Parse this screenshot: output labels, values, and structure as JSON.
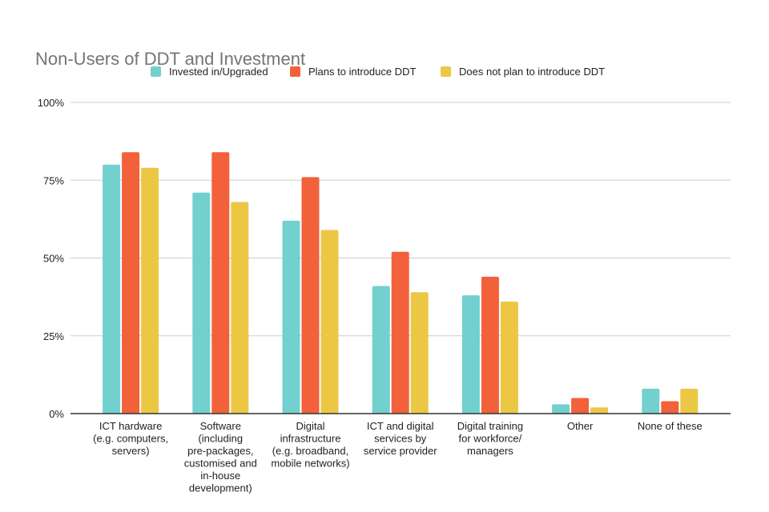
{
  "chart_data": {
    "type": "bar",
    "title": "Non-Users of DDT and Investment",
    "xlabel": "",
    "ylabel": "",
    "ylim": [
      0,
      100
    ],
    "yticks": [
      "0%",
      "25%",
      "50%",
      "75%",
      "100%"
    ],
    "ytick_values": [
      0,
      25,
      50,
      75,
      100
    ],
    "grid": true,
    "legend_position": "top-center",
    "categories": [
      [
        "ICT hardware",
        "(e.g. computers,",
        "servers)"
      ],
      [
        "Software",
        "(including",
        "pre-packages,",
        "customised and",
        "in-house",
        "development)"
      ],
      [
        "Digital",
        "infrastructure",
        "(e.g. broadband,",
        "mobile networks)"
      ],
      [
        "ICT and digital",
        "services by",
        "service provider"
      ],
      [
        "Digital training",
        "for workforce/",
        "managers"
      ],
      [
        "Other"
      ],
      [
        "None of these"
      ]
    ],
    "series": [
      {
        "name": "Invested in/Upgraded",
        "color": "#72D0CF",
        "values": [
          80,
          71,
          62,
          41,
          38,
          3,
          8
        ]
      },
      {
        "name": "Plans to introduce DDT",
        "color": "#F2613A",
        "values": [
          84,
          84,
          76,
          52,
          44,
          5,
          4
        ]
      },
      {
        "name": "Does not plan to introduce DDT",
        "color": "#ECC744",
        "values": [
          79,
          68,
          59,
          39,
          36,
          2,
          8
        ]
      }
    ]
  }
}
